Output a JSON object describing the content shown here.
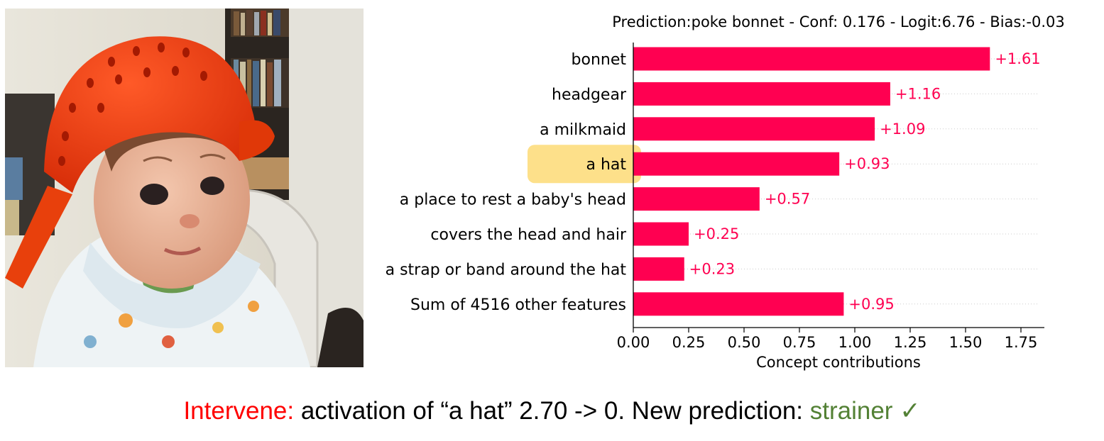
{
  "chart_data": {
    "type": "bar",
    "orientation": "horizontal",
    "title": "Prediction:poke bonnet - Conf: 0.176 - Logit:6.76 - Bias:-0.03",
    "xlabel": "Concept contributions",
    "ylabel": "",
    "xlim": [
      0,
      1.85
    ],
    "xticks": [
      "0.00",
      "0.25",
      "0.50",
      "0.75",
      "1.00",
      "1.25",
      "1.50",
      "1.75"
    ],
    "grid": "dotted horizontal lines per bar",
    "bar_color": "#ff0051",
    "highlight_color": "#fde08a",
    "categories": [
      "bonnet",
      "headgear",
      "a milkmaid",
      "a hat",
      "a place to rest a baby's head",
      "covers the head and hair",
      "a strap or band around the hat",
      "Sum of 4516 other features"
    ],
    "values": [
      1.61,
      1.16,
      1.09,
      0.93,
      0.57,
      0.25,
      0.23,
      0.95
    ],
    "value_labels": [
      "+1.61",
      "+1.16",
      "+1.09",
      "+0.93",
      "+0.57",
      "+0.25",
      "+0.23",
      "+0.95"
    ],
    "highlighted_category": "a hat"
  },
  "caption": {
    "intervene": "Intervene:",
    "text": " activation of “a hat” 2.70 -> 0. New prediction: ",
    "result": "strainer",
    "check": "✓"
  }
}
